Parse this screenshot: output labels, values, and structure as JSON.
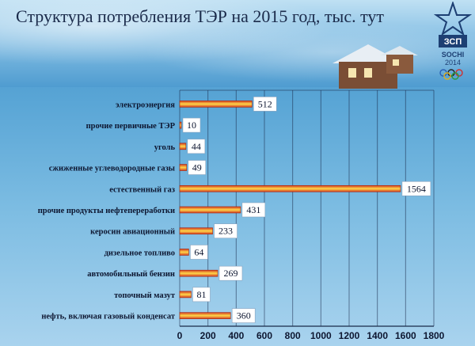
{
  "title": "Структура потребления ТЭР на 2015 год, тыс. тут",
  "logo": {
    "letters": "ЗСП",
    "city": "SOCHI",
    "year": "2014"
  },
  "chart_data": {
    "type": "bar",
    "orientation": "horizontal",
    "title": "Структура потребления ТЭР на 2015 год, тыс. тут",
    "categories": [
      "электроэнергия",
      "прочие первичные ТЭР",
      "уголь",
      "сжиженные углеводородные газы",
      "естественный газ",
      "прочие продукты нефтепереработки",
      "керосин авиационный",
      "дизельное топливо",
      "автомобильный бензин",
      "топочный мазут",
      "нефть, включая газовый конденсат"
    ],
    "values": [
      512,
      10,
      44,
      49,
      1564,
      431,
      233,
      64,
      269,
      81,
      360
    ],
    "value_labels": [
      "512",
      "10",
      "44",
      "49",
      "1564",
      "431",
      "233",
      "64",
      "269",
      "81",
      "360"
    ],
    "xlim": [
      0,
      1800
    ],
    "xticks": [
      "0",
      "200",
      "400",
      "600",
      "800",
      "1000",
      "1200",
      "1400",
      "1600",
      "1800"
    ],
    "grid": true,
    "colors": {
      "bar": "#e8472a",
      "bar_highlight": "#ffd84a"
    }
  }
}
